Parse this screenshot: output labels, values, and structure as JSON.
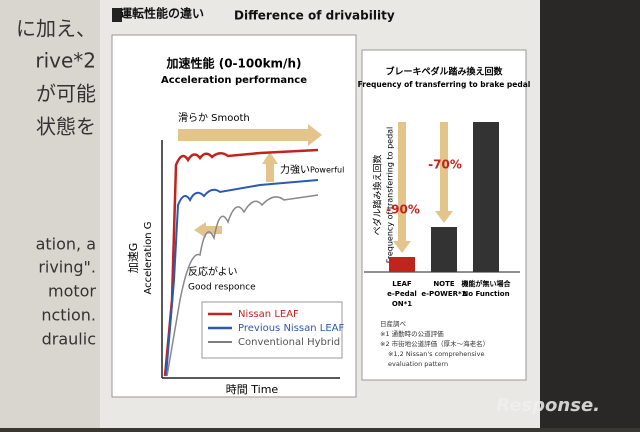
{
  "side_text": [
    "に加え、",
    "rive*2",
    "が可能",
    "状態を",
    "ation, a",
    "riving\".",
    "motor",
    "nction.",
    "draulic"
  ],
  "header": {
    "title_ja": "運転性能の違い",
    "title_en": "Difference of drivability"
  },
  "acceleration": {
    "title_ja": "加速性能 (0-100km/h)",
    "title_en": "Acceleration performance",
    "y_label_ja": "加速G",
    "y_label_en": "Acceleration G",
    "x_label": "時間 Time",
    "smooth": "滑らか Smooth",
    "powerful_ja": "力強い",
    "powerful_en": "Powerful",
    "response_ja": "反応がよい",
    "response_en": "Good responce",
    "legend": [
      {
        "name": "Nissan LEAF",
        "color": "#c0241c"
      },
      {
        "name": "Previous Nissan LEAF",
        "color": "#2a5bb0"
      },
      {
        "name": "Conventional Hybrid",
        "color": "#555555"
      }
    ]
  },
  "brake": {
    "title_ja": "ブレーキペダル踏み換え回数",
    "title_en": "Frequency of transferring to brake pedal",
    "y_label_ja": "ペダル踏み換え回数",
    "y_label_en": "Frequency of transferring to pedal",
    "bars": [
      {
        "label": [
          "LEAF",
          "e-Pedal",
          "ON*1"
        ],
        "value": 10,
        "color": "#c0241c"
      },
      {
        "label": [
          "NOTE",
          "e-POWER*2"
        ],
        "value": 30,
        "color": "#333333"
      },
      {
        "label": [
          "機能が無い場合",
          "No Function"
        ],
        "value": 100,
        "color": "#333333"
      }
    ],
    "reductions": [
      "-90%",
      "-70%"
    ],
    "notes": [
      "日産調べ",
      "※1 通勤時の公道評価",
      "※2 市街地公道評価（厚木～海老名）",
      "※1,2 Nissan's comprehensive",
      "evaluation pattern"
    ]
  },
  "watermark": "Response."
}
